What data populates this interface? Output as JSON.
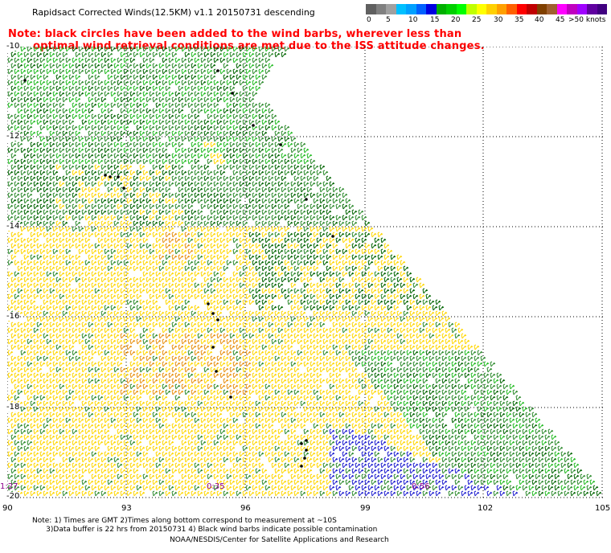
{
  "header": {
    "title": "Rapidsact Corrected Winds(12.5KM) v1.1 20150731 descending",
    "note_line1": "Note: black circles have been added to the wind barbs, wherever less than",
    "note_line2": "optimal wind retrieval conditions are met due to the ISS attitude changes."
  },
  "color_scale": {
    "labels": [
      "0",
      "5",
      "10",
      "15",
      "20",
      "25",
      "30",
      "35",
      "40",
      "45",
      ">50 knots"
    ],
    "colors": [
      "#606060",
      "#808080",
      "#a0a0a0",
      "#00c0ff",
      "#00a0ff",
      "#0060ff",
      "#0000e0",
      "#00b000",
      "#00d000",
      "#00ff00",
      "#c0ff00",
      "#ffff00",
      "#ffd000",
      "#ffa000",
      "#ff6000",
      "#ff0000",
      "#c00000",
      "#804000",
      "#a06030",
      "#ff00ff",
      "#c000c0",
      "#a000ff",
      "#6000a0",
      "#400080"
    ]
  },
  "map": {
    "lat_labels": [
      "-10",
      "-12",
      "-14",
      "-16",
      "-18",
      "-20"
    ],
    "lon_labels": [
      "90",
      "93",
      "96",
      "99",
      "102",
      "105"
    ],
    "time_labels": [
      "1:27",
      "0:35",
      "0:56"
    ],
    "wind_colors": {
      "green": "#2e8b2e",
      "dark_green": "#006400",
      "light_green": "#22bb22",
      "yellow": "#ffd700",
      "orange": "#e89010",
      "blue": "#1c1ccf",
      "black": "#000000"
    }
  },
  "footer": {
    "line1": "Note: 1) Times are GMT 2)Times along bottom correspond to measurement at ~10S",
    "line2": "      3)Data buffer is 22 hrs from 20150731 4) Black wind barbs indicate possible contamination",
    "credit": "NOAA/NESDIS/Center for Satellite Applications and Research"
  }
}
